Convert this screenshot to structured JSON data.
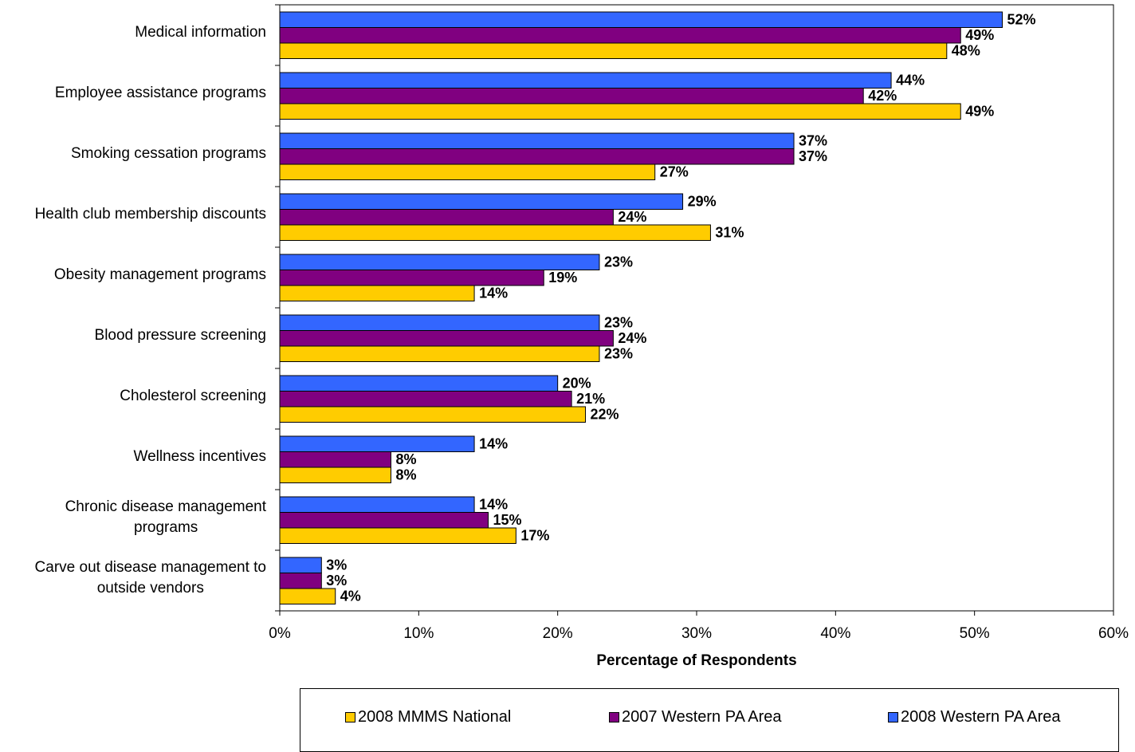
{
  "chart_data": {
    "type": "bar",
    "orientation": "horizontal",
    "categories": [
      "Medical information",
      "Employee assistance programs",
      "Smoking cessation programs",
      "Health club membership discounts",
      "Obesity management programs",
      "Blood pressure screening",
      "Cholesterol screening",
      "Wellness incentives",
      "Chronic disease management programs",
      "Carve out disease management to outside vendors"
    ],
    "category_lines": [
      [
        "Medical information"
      ],
      [
        "Employee assistance programs"
      ],
      [
        "Smoking cessation programs"
      ],
      [
        "Health club membership discounts"
      ],
      [
        "Obesity management programs"
      ],
      [
        "Blood pressure screening"
      ],
      [
        "Cholesterol screening"
      ],
      [
        "Wellness incentives"
      ],
      [
        "Chronic disease management",
        "programs"
      ],
      [
        "Carve out disease management to",
        "outside vendors"
      ]
    ],
    "series": [
      {
        "name": "2008 Western PA Area",
        "color": "#3366FF",
        "values": [
          52,
          44,
          37,
          29,
          23,
          23,
          20,
          14,
          14,
          3
        ],
        "labels": [
          "52%",
          "44%",
          "37%",
          "29%",
          "23%",
          "23%",
          "20%",
          "14%",
          "14%",
          "3%"
        ]
      },
      {
        "name": "2007 Western PA Area",
        "color": "#800080",
        "values": [
          49,
          42,
          37,
          24,
          19,
          24,
          21,
          8,
          15,
          3
        ],
        "labels": [
          "49%",
          "42%",
          "37%",
          "24%",
          "19%",
          "24%",
          "21%",
          "8%",
          "15%",
          "3%"
        ]
      },
      {
        "name": "2008 MMMS National",
        "color": "#FFCC00",
        "values": [
          48,
          49,
          27,
          31,
          14,
          23,
          22,
          8,
          17,
          4
        ],
        "labels": [
          "48%",
          "49%",
          "27%",
          "31%",
          "14%",
          "23%",
          "22%",
          "8%",
          "17%",
          "4%"
        ]
      }
    ],
    "xlabel": "Percentage of Respondents",
    "ylabel": "",
    "xlim": [
      0,
      60
    ],
    "xticks": [
      "0%",
      "10%",
      "20%",
      "30%",
      "40%",
      "50%",
      "60%"
    ],
    "grid": false,
    "legend_position": "bottom",
    "legend_order": [
      "2008 MMMS National",
      "2007 Western PA Area",
      "2008 Western PA Area"
    ]
  }
}
